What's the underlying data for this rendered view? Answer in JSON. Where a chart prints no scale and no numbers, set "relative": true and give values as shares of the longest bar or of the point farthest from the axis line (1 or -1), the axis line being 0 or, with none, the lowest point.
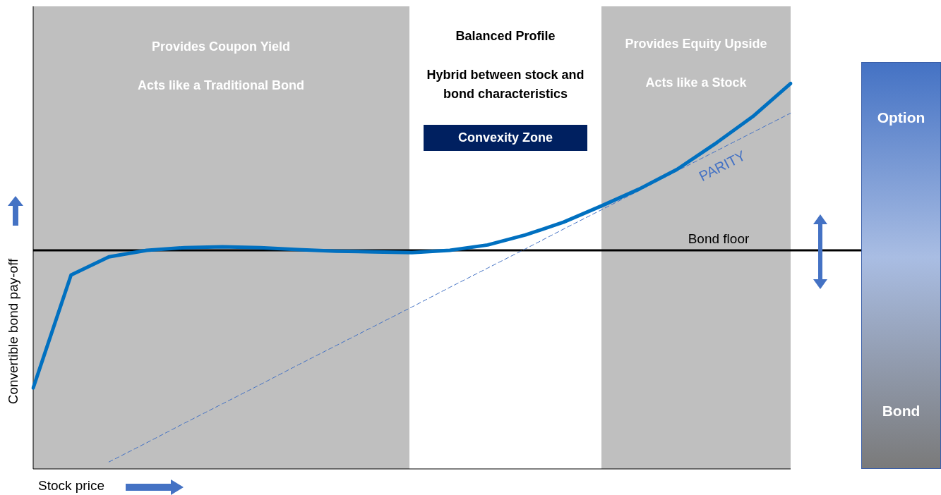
{
  "chart_data": {
    "type": "line",
    "relative": true,
    "xlabel": "Stock price",
    "ylabel": "Convertible bond pay-off",
    "legend": false,
    "categories": [
      null,
      null,
      null,
      null,
      null,
      null,
      null,
      null,
      null,
      null,
      null,
      null,
      null,
      null,
      null,
      null,
      null,
      null,
      null,
      null,
      null
    ],
    "series": [
      {
        "color": "#0070c0",
        "line_style": "solid",
        "values": [
          0.21,
          0.503,
          0.55,
          0.567,
          0.574,
          0.576,
          0.574,
          0.569,
          0.565,
          0.563,
          0.561,
          0.567,
          0.581,
          0.607,
          0.64,
          0.682,
          0.726,
          0.777,
          0.843,
          0.914,
          1.0
        ]
      },
      {
        "name": "PARITY",
        "color": "#4472c4",
        "line_style": "dashed",
        "values": [
          null,
          null,
          0.018,
          0.068,
          0.119,
          0.169,
          0.219,
          0.27,
          0.32,
          0.37,
          0.42,
          0.471,
          0.521,
          0.571,
          0.622,
          0.672,
          0.722,
          0.773,
          0.823,
          0.873,
          0.923
        ]
      }
    ],
    "ref_lines": [
      {
        "axis": "y",
        "value": 0.567,
        "label": "Bond floor",
        "color": "#000000"
      }
    ],
    "annotations": [
      "Provides Coupon Yield",
      "Acts like a Traditional Bond",
      "Balanced Profile",
      "Hybrid between stock and bond characteristics",
      "Convexity Zone",
      "Provides Equity Upside",
      "Acts like a Stock",
      "Option",
      "Bond"
    ]
  }
}
